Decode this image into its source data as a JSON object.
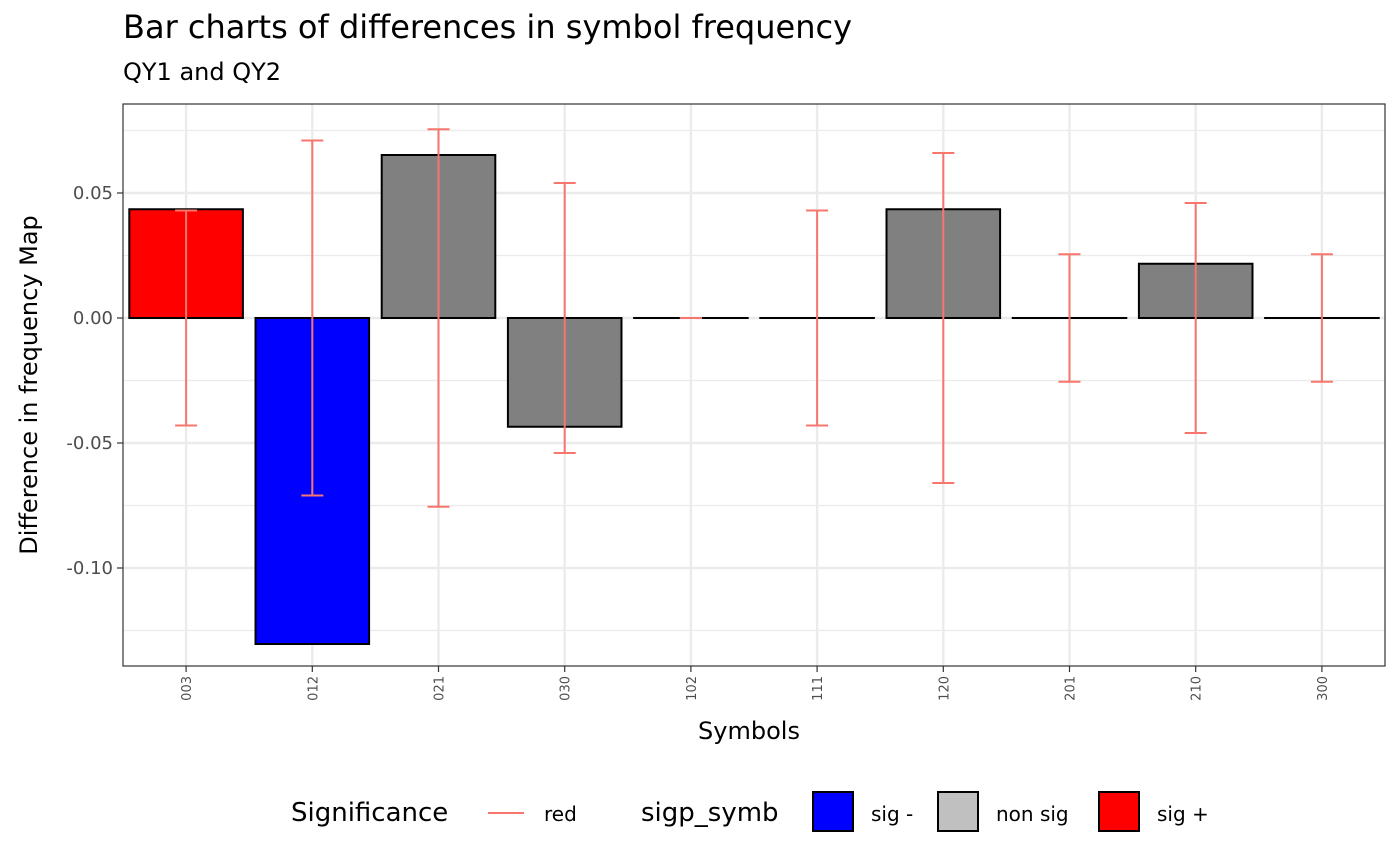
{
  "chart_data": {
    "type": "bar",
    "title": "Bar charts of differences in symbol frequency",
    "subtitle": "QY1 and QY2",
    "xlabel": "Symbols",
    "ylabel": "Difference in frequency Map",
    "ylim": [
      -0.13,
      0.08
    ],
    "yticks": [
      "0.05",
      "0.00",
      "-0.05",
      "-0.10"
    ],
    "ytick_values": [
      0.05,
      0.0,
      -0.05,
      -0.1
    ],
    "grid": true,
    "legend_position": "bottom",
    "categories": [
      "003",
      "012",
      "021",
      "030",
      "102",
      "111",
      "120",
      "201",
      "210",
      "300"
    ],
    "values": [
      0.0435,
      -0.1304,
      0.0652,
      -0.0435,
      0.0,
      0.0,
      0.0435,
      0.0,
      0.0217,
      0.0
    ],
    "significance": [
      "sig +",
      "sig -",
      "non sig",
      "non sig",
      "non sig",
      "non sig",
      "non sig",
      "non sig",
      "non sig",
      "non sig"
    ],
    "error_bars": [
      {
        "low": -0.043,
        "high": 0.043
      },
      {
        "low": -0.071,
        "high": 0.071
      },
      {
        "low": -0.0755,
        "high": 0.0755
      },
      {
        "low": -0.054,
        "high": 0.054
      },
      {
        "low": 0.0,
        "high": 0.0
      },
      {
        "low": -0.043,
        "high": 0.043
      },
      {
        "low": -0.066,
        "high": 0.066
      },
      {
        "low": -0.0255,
        "high": 0.0255
      },
      {
        "low": -0.046,
        "high": 0.046
      },
      {
        "low": -0.0255,
        "high": 0.0255
      }
    ],
    "colors": {
      "sig -": "#0000ff",
      "non sig": "#808080",
      "sig +": "#ff0000",
      "error_bar": "#f8766d",
      "non_sig_key": "#c0c0c0"
    }
  },
  "legend": {
    "significance_title": "Significance",
    "significance_label": "red",
    "sigp_title": "sigp_symb",
    "items": [
      "sig -",
      "non sig",
      "sig +"
    ]
  }
}
